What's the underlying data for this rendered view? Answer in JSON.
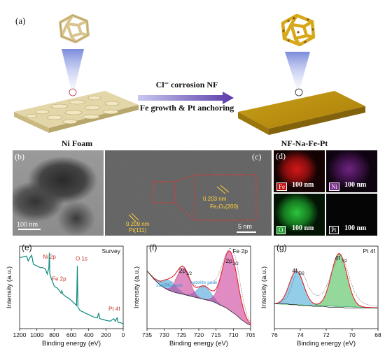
{
  "panel_a": {
    "label": "(a)",
    "process_top": "Cl⁻ corrosion NF",
    "process_bottom": "Fe growth & Pt anchoring",
    "left_caption": "Ni Foam",
    "right_caption": "NF-Na-Fe-Pt"
  },
  "panel_b": {
    "label": "(b)",
    "scale": "100 nm"
  },
  "panel_c": {
    "label": "(c)",
    "scale": "5 nm",
    "fringe_1": "0.203 nm",
    "fringe_1_plane": "Fe₂O₃(200)",
    "fringe_2": "0.209 nm",
    "fringe_2_plane": "Pt(111)"
  },
  "panel_d": {
    "label": "(d)",
    "maps": [
      {
        "element": "Fe",
        "scale": "100 nm",
        "color": "#c41414"
      },
      {
        "element": "Ni",
        "scale": "100 nm",
        "color": "#7a2a8a"
      },
      {
        "element": "O",
        "scale": "100 nm",
        "color": "#20a030"
      },
      {
        "element": "Pt",
        "scale": "100 nm",
        "color": "#0a0a0a"
      }
    ]
  },
  "chart_data": [
    {
      "panel": "(e)",
      "type": "line",
      "title": "Survey",
      "xlabel": "Binding energy (eV)",
      "ylabel": "Intensity (a.u.)",
      "xlim": [
        1200,
        0
      ],
      "xticks": [
        1200,
        1000,
        800,
        600,
        400,
        200,
        0
      ],
      "color": "#0e8a7e",
      "annotations": [
        {
          "text": "Ni 2p",
          "x": 855
        },
        {
          "text": "Fe 2p",
          "x": 711
        },
        {
          "text": "O 1s",
          "x": 531
        },
        {
          "text": "Pt 4f",
          "x": 71
        }
      ],
      "x": [
        1200,
        1120,
        1100,
        1080,
        1060,
        1040,
        1000,
        960,
        930,
        900,
        880,
        870,
        860,
        855,
        850,
        830,
        800,
        780,
        760,
        740,
        720,
        711,
        700,
        680,
        650,
        620,
        600,
        560,
        540,
        531,
        525,
        500,
        460,
        420,
        380,
        340,
        300,
        284,
        270,
        230,
        200,
        150,
        110,
        90,
        71,
        60,
        30,
        0
      ],
      "y": [
        0.86,
        0.88,
        0.82,
        0.86,
        0.89,
        0.78,
        0.76,
        0.74,
        0.74,
        0.72,
        0.66,
        0.7,
        0.74,
        0.92,
        0.66,
        0.6,
        0.52,
        0.5,
        0.49,
        0.46,
        0.43,
        0.46,
        0.42,
        0.4,
        0.38,
        0.36,
        0.34,
        0.3,
        0.28,
        0.76,
        0.26,
        0.22,
        0.2,
        0.18,
        0.16,
        0.14,
        0.13,
        0.19,
        0.12,
        0.11,
        0.1,
        0.09,
        0.12,
        0.09,
        0.13,
        0.08,
        0.07,
        0.06
      ]
    },
    {
      "panel": "(f)",
      "type": "area",
      "title": "Fe 2p",
      "xlabel": "Binding energy (eV)",
      "ylabel": "Intensity (a.u.)",
      "xlim": [
        735,
        705
      ],
      "xticks": [
        735,
        730,
        725,
        720,
        715,
        710,
        705
      ],
      "annotations": [
        {
          "text": "2p",
          "sub": "1/2",
          "x": 724.5
        },
        {
          "text": "2p",
          "sub": "3/2",
          "x": 711
        },
        {
          "text": "satellite peak",
          "x": 728.5
        },
        {
          "text": "satellite peak",
          "x": 718.5
        }
      ],
      "x": [
        735,
        733,
        731,
        729,
        727,
        726,
        725,
        724,
        723,
        722,
        721,
        720,
        719,
        718,
        717,
        716,
        715,
        714,
        713,
        712,
        711,
        710,
        709,
        708,
        707,
        706,
        705
      ],
      "raw": [
        0.7,
        0.62,
        0.56,
        0.54,
        0.58,
        0.66,
        0.76,
        0.72,
        0.62,
        0.56,
        0.52,
        0.5,
        0.5,
        0.52,
        0.54,
        0.56,
        0.6,
        0.68,
        0.8,
        0.92,
        0.98,
        0.94,
        0.8,
        0.55,
        0.32,
        0.16,
        0.08
      ],
      "background": [
        0.7,
        0.6,
        0.52,
        0.47,
        0.44,
        0.43,
        0.42,
        0.41,
        0.4,
        0.39,
        0.38,
        0.37,
        0.36,
        0.35,
        0.34,
        0.33,
        0.31,
        0.29,
        0.27,
        0.25,
        0.22,
        0.19,
        0.16,
        0.12,
        0.09,
        0.06,
        0.04
      ],
      "colors": {
        "main": "#c62b8f",
        "satellite": "#3a9ad6",
        "fit": "#e8222b",
        "raw": "#555555"
      }
    },
    {
      "panel": "(g)",
      "type": "area",
      "title": "Pt 4f",
      "xlabel": "Binding energy (eV)",
      "ylabel": "Intensity (a.u.)",
      "xlim": [
        76,
        68
      ],
      "xticks": [
        76,
        74,
        72,
        70,
        68
      ],
      "annotations": [
        {
          "text": "4f",
          "sub": "5/2",
          "x": 74.3
        },
        {
          "text": "4f",
          "sub": "7/2",
          "x": 71.0
        }
      ],
      "x": [
        76,
        75.5,
        75,
        74.7,
        74.5,
        74.3,
        74.0,
        73.7,
        73.4,
        73.0,
        72.6,
        72.2,
        71.8,
        71.5,
        71.2,
        71.0,
        70.8,
        70.5,
        70.2,
        69.8,
        69.4,
        69.0,
        68.5,
        68
      ],
      "raw": [
        0.3,
        0.32,
        0.38,
        0.5,
        0.6,
        0.68,
        0.7,
        0.64,
        0.52,
        0.42,
        0.4,
        0.44,
        0.58,
        0.72,
        0.84,
        0.9,
        0.88,
        0.78,
        0.62,
        0.44,
        0.34,
        0.3,
        0.28,
        0.27
      ],
      "background": [
        0.3,
        0.3,
        0.3,
        0.29,
        0.29,
        0.29,
        0.28,
        0.28,
        0.28,
        0.27,
        0.27,
        0.27,
        0.26,
        0.26,
        0.26,
        0.26,
        0.26,
        0.25,
        0.25,
        0.25,
        0.25,
        0.25,
        0.25,
        0.25
      ],
      "colors": {
        "peak1": "#3aa6d6",
        "peak2": "#3cb84a",
        "fit": "#e8222b",
        "raw": "#555555"
      }
    }
  ]
}
